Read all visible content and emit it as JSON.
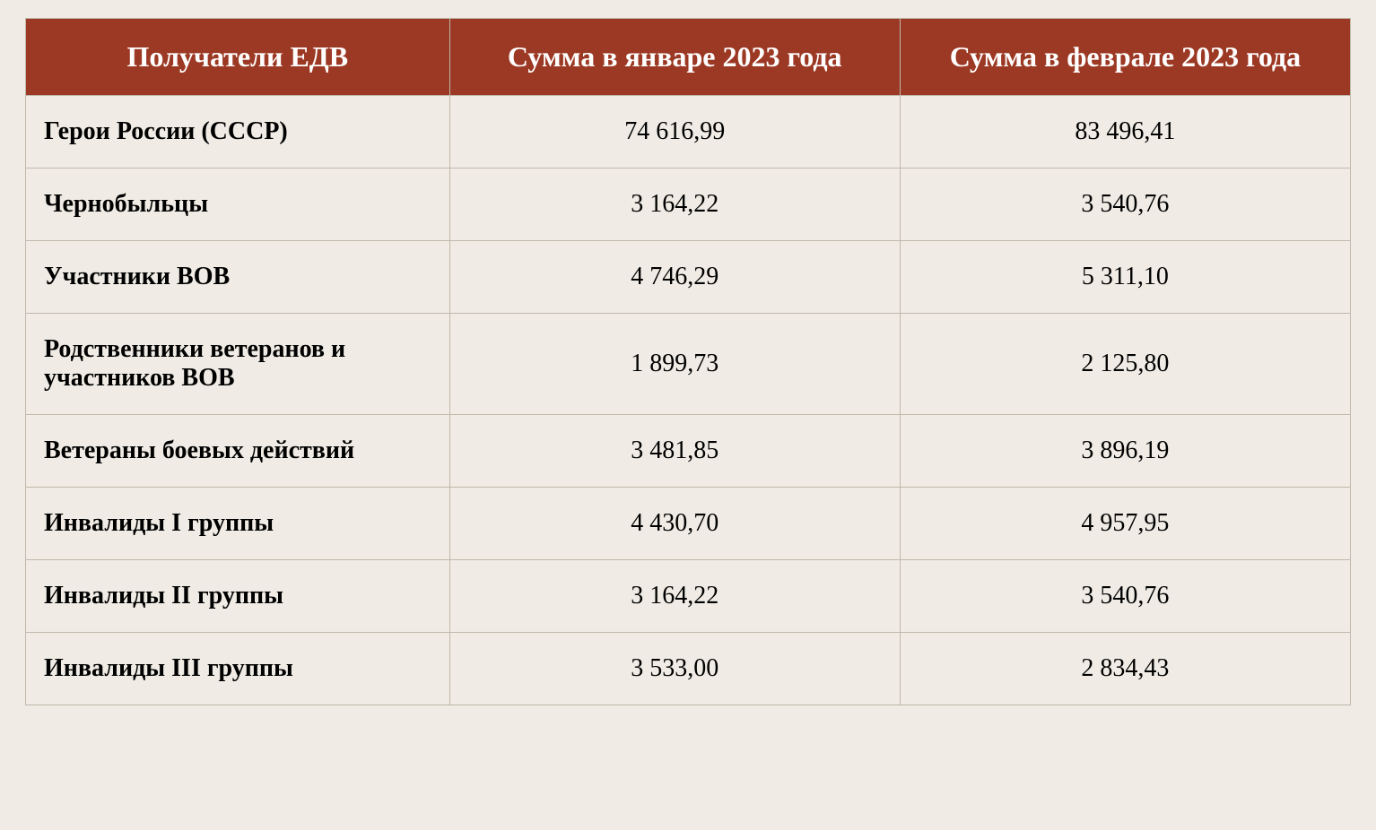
{
  "table": {
    "columns": [
      "Получатели ЕДВ",
      "Сумма в январе 2023 года",
      "Сумма в феврале 2023 года"
    ],
    "rows": [
      [
        "Герои России (СССР)",
        "74 616,99",
        "83 496,41"
      ],
      [
        "Чернобыльцы",
        "3 164,22",
        "3 540,76"
      ],
      [
        "Участники ВОВ",
        "4 746,29",
        "5 311,10"
      ],
      [
        "Родственники ветеранов и участников ВОВ",
        "1 899,73",
        "2 125,80"
      ],
      [
        "Ветераны боевых действий",
        "3 481,85",
        "3 896,19"
      ],
      [
        "Инвалиды I группы",
        "4 430,70",
        "4 957,95"
      ],
      [
        "Инвалиды II группы",
        "3 164,22",
        "3 540,76"
      ],
      [
        "Инвалиды III группы",
        "3 533,00",
        "2 834,43"
      ]
    ],
    "header_bg_color": "#9c3924",
    "header_text_color": "#ffffff",
    "body_bg_color": "#f0ece5",
    "border_color": "#bfb8ab",
    "header_fontsize": 32,
    "body_fontsize": 28,
    "col_widths": [
      "32%",
      "34%",
      "34%"
    ],
    "col_align": [
      "left",
      "center",
      "center"
    ]
  }
}
